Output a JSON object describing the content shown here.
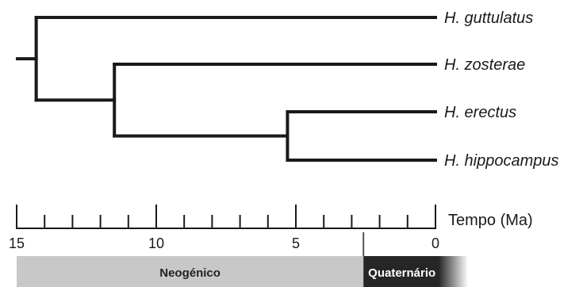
{
  "taxa": [
    {
      "label": "H. guttulatus"
    },
    {
      "label": "H. zosterae"
    },
    {
      "label": "H. erectus"
    },
    {
      "label": "H. hippocampus"
    }
  ],
  "nodes": {
    "root_age_ma": 14.3,
    "zosterae_erectus_hippocampus_age_ma": 11.5,
    "erectus_hippocampus_age_ma": 5.3
  },
  "axis": {
    "title": "Tempo (Ma)",
    "min_ma": 0,
    "max_ma": 15,
    "major_ticks": [
      15,
      10,
      5,
      0
    ],
    "major_tick_labels": [
      "15",
      "10",
      "5",
      "0"
    ],
    "minor_tick_step_ma": 1
  },
  "periods": [
    {
      "label": "Neogénico",
      "from_ma": 15,
      "to_ma": 2.58,
      "color": "#c8c8c8",
      "text_color": "#222222"
    },
    {
      "label": "Quaternário",
      "from_ma": 2.58,
      "to_ma": 0,
      "color": "#262626",
      "text_color": "#ffffff"
    }
  ],
  "colors": {
    "branch": "#1a1a1a"
  }
}
